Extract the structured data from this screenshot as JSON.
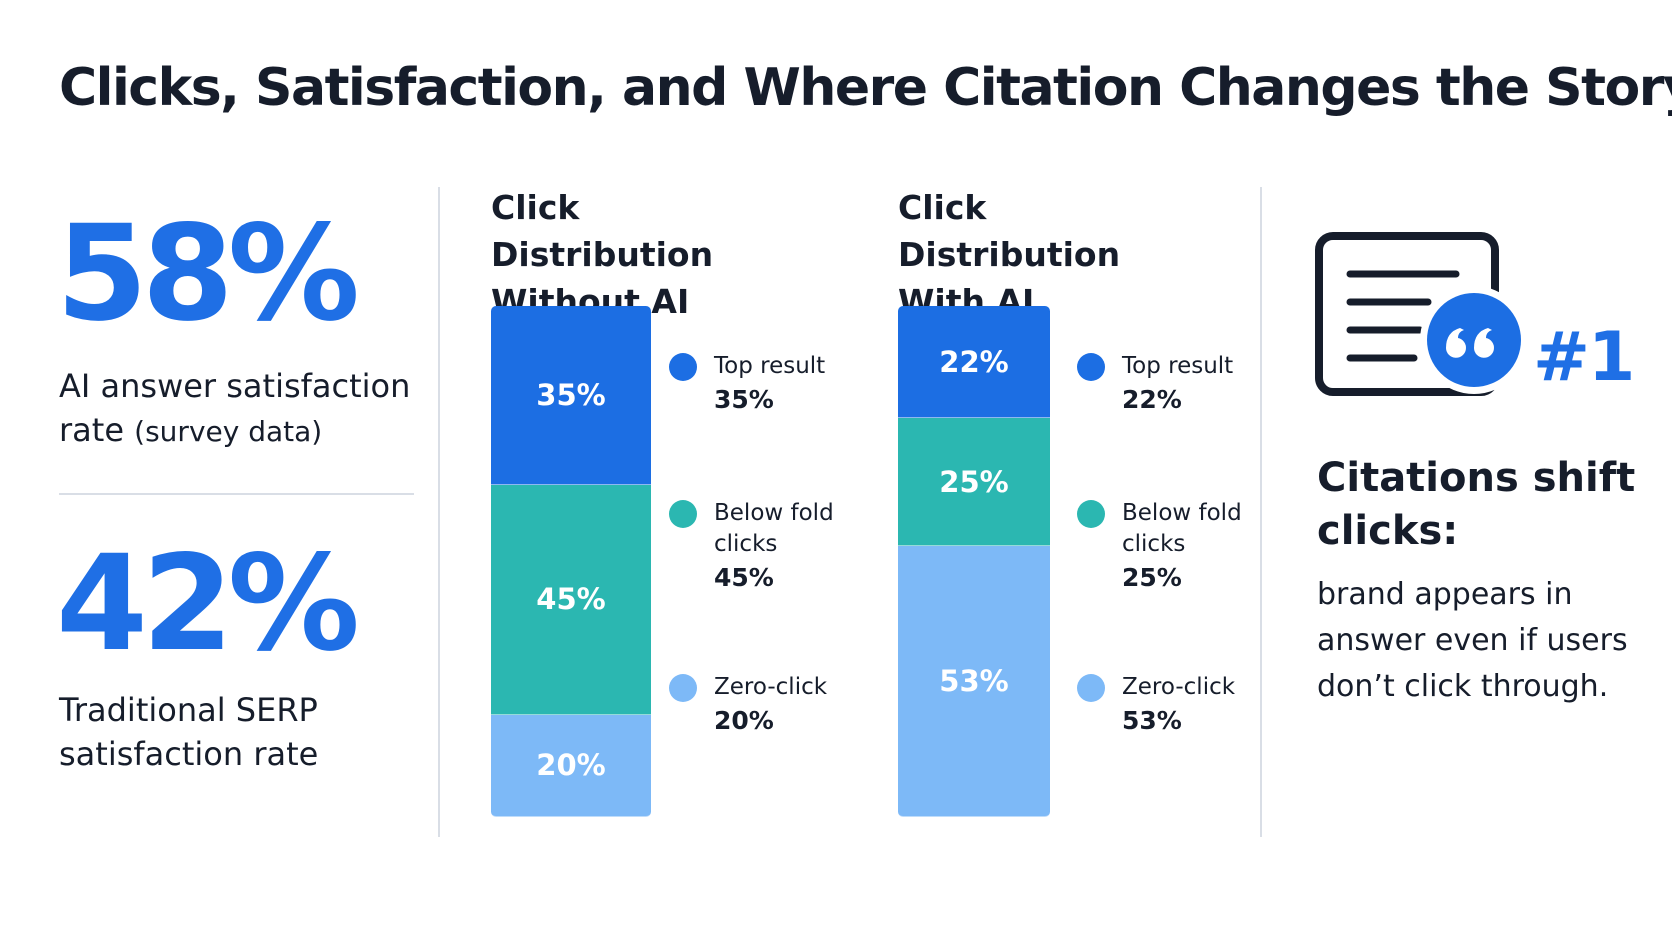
{
  "title": "Clicks, Satisfaction, and Where Citation Changes the Story",
  "stats": [
    {
      "value": "58%",
      "label": "AI answer satisfaction rate",
      "note": "(survey data)"
    },
    {
      "value": "42%",
      "label": "Traditional SERP satisfaction rate"
    }
  ],
  "chart_data": [
    {
      "type": "stacked-bar",
      "title": "Click Distribution Without AI",
      "series": [
        {
          "name": "Top result",
          "color": "#1c6ee3",
          "values": [
            35
          ],
          "value_labels": [
            "35%"
          ]
        },
        {
          "name": "Below fold clicks",
          "color": "#2bb7b1",
          "values": [
            45
          ],
          "value_labels": [
            "45%"
          ]
        },
        {
          "name": "Zero-click",
          "color": "#7db9f7",
          "values": [
            20
          ],
          "value_labels": [
            "20%"
          ]
        }
      ]
    },
    {
      "type": "stacked-bar",
      "title": "Click Distribution With AI",
      "series": [
        {
          "name": "Top result",
          "color": "#1c6ee3",
          "values": [
            22
          ],
          "value_labels": [
            "22%"
          ]
        },
        {
          "name": "Below fold clicks",
          "color": "#2bb7b1",
          "values": [
            25
          ],
          "value_labels": [
            "25%"
          ]
        },
        {
          "name": "Zero-click",
          "color": "#7db9f7",
          "values": [
            53
          ],
          "value_labels": [
            "53%"
          ]
        }
      ]
    }
  ],
  "callout": {
    "badge": "#1",
    "heading": "Citations shift clicks:",
    "body": "brand appears in answer even if users don’t click through."
  }
}
